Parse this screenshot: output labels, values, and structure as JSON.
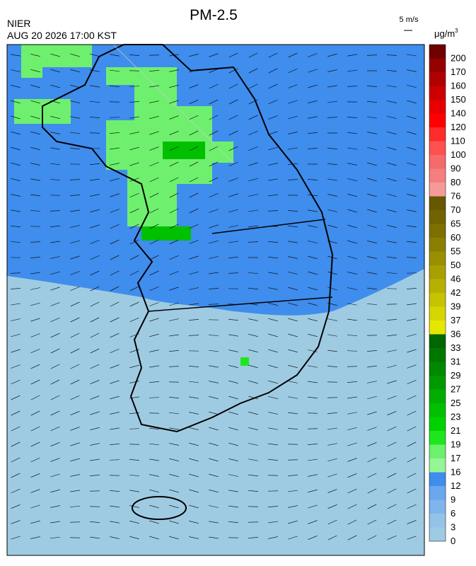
{
  "header": {
    "title": "PM-2.5",
    "source": "NIER",
    "timestamp": "AUG 20 2026 17:00 KST"
  },
  "wind_scale": {
    "label": "5 m/s"
  },
  "colorbar": {
    "unit": "μg/m",
    "unit_exponent": "3",
    "entries": [
      {
        "label": "0",
        "color": "#9fcbe2"
      },
      {
        "label": "3",
        "color": "#93c3e6"
      },
      {
        "label": "6",
        "color": "#7fb5ea"
      },
      {
        "label": "9",
        "color": "#6aa8ee"
      },
      {
        "label": "12",
        "color": "#3f8ded"
      },
      {
        "label": "16",
        "color": "#96f596"
      },
      {
        "label": "17",
        "color": "#6ef06e"
      },
      {
        "label": "19",
        "color": "#1ee61e"
      },
      {
        "label": "21",
        "color": "#00d200"
      },
      {
        "label": "23",
        "color": "#00c000"
      },
      {
        "label": "25",
        "color": "#00ad00"
      },
      {
        "label": "27",
        "color": "#009a00"
      },
      {
        "label": "29",
        "color": "#008800"
      },
      {
        "label": "31",
        "color": "#007800"
      },
      {
        "label": "33",
        "color": "#006600"
      },
      {
        "label": "36",
        "color": "#e6e600"
      },
      {
        "label": "37",
        "color": "#d6d600"
      },
      {
        "label": "39",
        "color": "#c8c300"
      },
      {
        "label": "42",
        "color": "#b7b000"
      },
      {
        "label": "46",
        "color": "#a8a000"
      },
      {
        "label": "50",
        "color": "#998f00"
      },
      {
        "label": "55",
        "color": "#8a7f00"
      },
      {
        "label": "60",
        "color": "#7d7000"
      },
      {
        "label": "65",
        "color": "#716300"
      },
      {
        "label": "70",
        "color": "#665800"
      },
      {
        "label": "76",
        "color": "#f59a9a"
      },
      {
        "label": "80",
        "color": "#f57e7e"
      },
      {
        "label": "90",
        "color": "#f56a6a"
      },
      {
        "label": "100",
        "color": "#ff5050"
      },
      {
        "label": "110",
        "color": "#ff2a2a"
      },
      {
        "label": "120",
        "color": "#ff0000"
      },
      {
        "label": "140",
        "color": "#e60000"
      },
      {
        "label": "150",
        "color": "#cc0000"
      },
      {
        "label": "160",
        "color": "#b00000"
      },
      {
        "label": "170",
        "color": "#950000"
      },
      {
        "label": "200",
        "color": "#6e0000"
      }
    ]
  }
}
